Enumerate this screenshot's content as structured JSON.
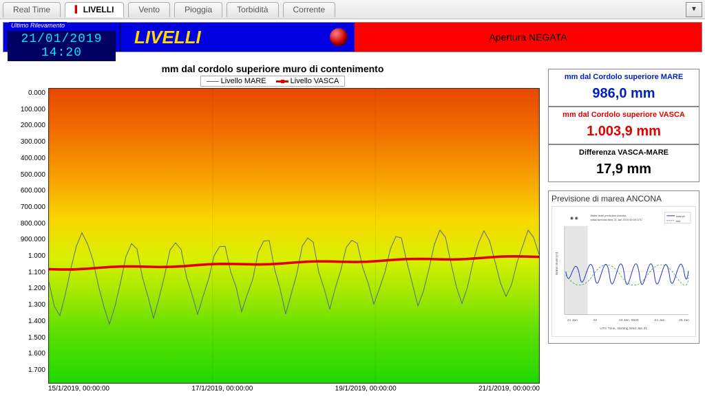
{
  "tabs": [
    "Real Time",
    "LIVELLI",
    "Vento",
    "Pioggia",
    "Torbidità",
    "Corrente"
  ],
  "active_tab_index": 1,
  "ultimo": {
    "title": "Ultimo Rilevamento",
    "value": "21/01/2019 14:20"
  },
  "page_title": "LIVELLI",
  "status_text": "Apertura NEGATA",
  "chart": {
    "title": "mm dal cordolo superiore muro di contenimento",
    "legend": [
      "Livello MARE",
      "Livello VASCA"
    ],
    "yticks": [
      "0.000",
      "100.000",
      "200.000",
      "300.000",
      "400.000",
      "500.000",
      "600.000",
      "700.000",
      "800.000",
      "900.000",
      "1.000",
      "1.100",
      "1.200",
      "1.300",
      "1.400",
      "1.500",
      "1.600",
      "1.700"
    ],
    "xticks": [
      "15/1/2019, 00:00:00",
      "17/1/2019, 00:00:00",
      "19/1/2019, 00:00:00",
      "21/1/2019, 00:00:00"
    ],
    "ylim": [
      0,
      1700
    ],
    "mare_color": "#5a6b8c",
    "vasca_color": "#e00000",
    "vasca_y": 1010,
    "mare_series": [
      1100,
      1250,
      1320,
      1200,
      1050,
      900,
      820,
      880,
      1000,
      1150,
      1280,
      1350,
      1250,
      1100,
      980,
      900,
      950,
      1080,
      1200,
      1300,
      1220,
      1080,
      960,
      880,
      930,
      1060,
      1200,
      1300,
      1230,
      1090,
      970,
      880,
      920,
      1050,
      1180,
      1280,
      1200,
      1070,
      950,
      870,
      910,
      1040,
      1170,
      1270,
      1190,
      1060,
      940,
      860,
      900,
      1030,
      1160,
      1260,
      1180,
      1050,
      930,
      850,
      890,
      1020,
      1150,
      1250,
      1170,
      1040,
      920,
      840,
      880,
      1010,
      1140,
      1240,
      1160,
      1030,
      910,
      830,
      870,
      1000,
      1130,
      1230,
      1150,
      1020,
      900,
      820,
      860,
      990,
      1120,
      1220,
      1140,
      1010,
      890,
      810,
      850,
      980
    ]
  },
  "metrics": [
    {
      "label": "mm dal Cordolo superiore MARE",
      "value": "986,0 mm",
      "color": "blue"
    },
    {
      "label": "mm dal Cordolo superiore VASCA",
      "value": "1.003,9 mm",
      "color": "red"
    },
    {
      "label": "Differenza VASCA-MARE",
      "value": "17,9 mm",
      "color": "black"
    }
  ],
  "forecast_title": "Previsione di marea ANCONA"
}
